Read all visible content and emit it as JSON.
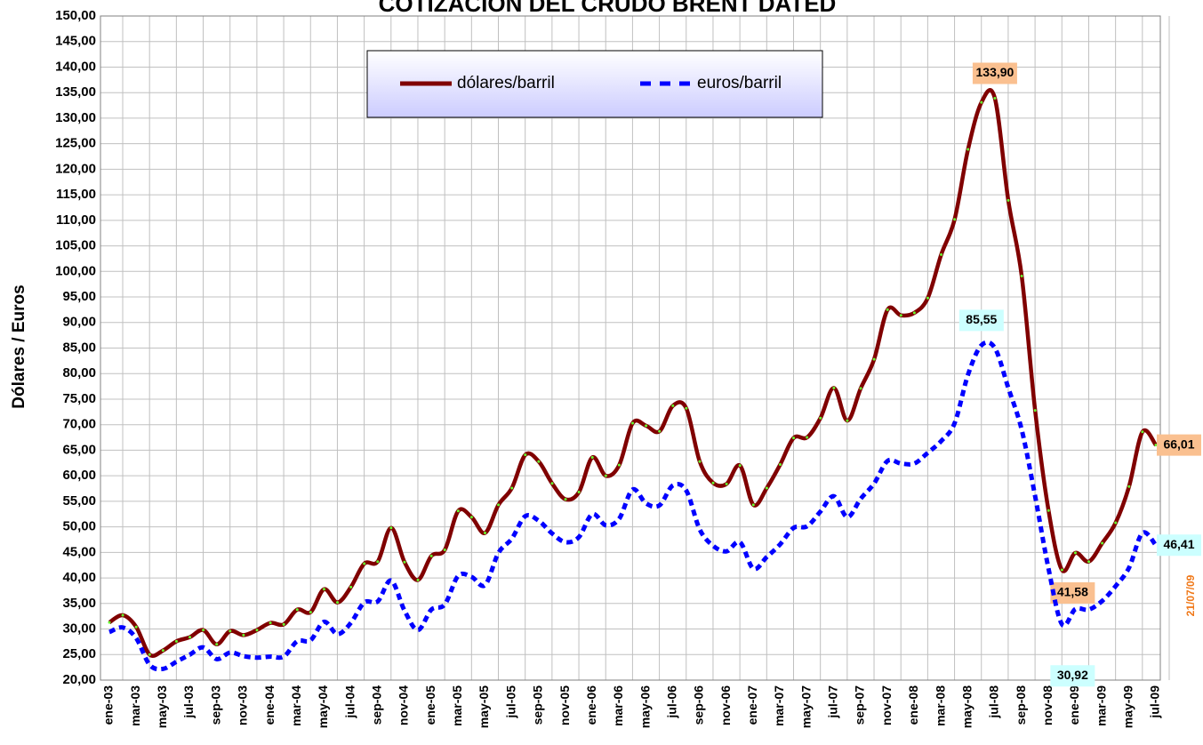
{
  "chart_data": {
    "type": "line",
    "title": "COTIZACIÓN DEL CRUDO BRENT DATED",
    "y_label": "Dólares / Euros",
    "annotation": "21/07/09",
    "categories": [
      "ene-03",
      null,
      "mar-03",
      null,
      "may-03",
      null,
      "jul-03",
      null,
      "sep-03",
      null,
      "nov-03",
      null,
      "ene-04",
      null,
      "mar-04",
      null,
      "may-04",
      null,
      "jul-04",
      null,
      "sep-04",
      null,
      "nov-04",
      null,
      "ene-05",
      null,
      "mar-05",
      null,
      "may-05",
      null,
      "jul-05",
      null,
      "sep-05",
      null,
      "nov-05",
      null,
      "ene-06",
      null,
      "mar-06",
      null,
      "may-06",
      null,
      "jul-06",
      null,
      "sep-06",
      null,
      "nov-06",
      null,
      "ene-07",
      null,
      "mar-07",
      null,
      "may-07",
      null,
      "jul-07",
      null,
      "sep-07",
      null,
      "nov-07",
      null,
      "ene-08",
      null,
      "mar-08",
      null,
      "may-08",
      null,
      "jul-08",
      null,
      "sep-08",
      null,
      "nov-08",
      null,
      "ene-09",
      null,
      "mar-09",
      null,
      "may-09",
      null,
      "jul-09"
    ],
    "series": [
      {
        "name": "dólares/barril",
        "color": "#800000",
        "label_fill": "#fac090",
        "values": [
          31.3,
          32.7,
          30.4,
          25.0,
          25.8,
          27.6,
          28.4,
          29.8,
          27.0,
          29.6,
          28.8,
          29.8,
          31.2,
          30.9,
          33.8,
          33.3,
          37.8,
          35.2,
          38.2,
          42.8,
          43.2,
          49.8,
          43.1,
          39.6,
          44.3,
          45.5,
          53.1,
          51.9,
          48.8,
          54.3,
          57.6,
          64.1,
          62.8,
          58.5,
          55.4,
          56.8,
          63.6,
          60.0,
          62.1,
          70.3,
          69.8,
          68.7,
          73.7,
          73.2,
          62.8,
          58.6,
          58.4,
          62.0,
          54.3,
          57.6,
          62.2,
          67.4,
          67.5,
          71.3,
          77.2,
          70.8,
          77.1,
          82.8,
          92.5,
          91.4,
          91.9,
          94.8,
          103.3,
          110.2,
          123.9,
          133.1,
          133.9,
          113.9,
          99.1,
          72.8,
          53.2,
          41.58,
          44.9,
          43.2,
          46.8,
          50.8,
          57.9,
          68.6,
          66.01
        ],
        "value_labels": [
          null,
          null,
          null,
          null,
          null,
          null,
          null,
          null,
          null,
          null,
          null,
          null,
          null,
          null,
          null,
          null,
          null,
          null,
          null,
          null,
          null,
          null,
          null,
          null,
          null,
          null,
          null,
          null,
          null,
          null,
          null,
          null,
          null,
          null,
          null,
          null,
          null,
          null,
          null,
          null,
          null,
          null,
          null,
          null,
          null,
          null,
          null,
          null,
          null,
          null,
          null,
          null,
          null,
          null,
          null,
          null,
          null,
          null,
          null,
          null,
          null,
          null,
          null,
          null,
          null,
          null,
          "133,90",
          null,
          null,
          null,
          null,
          "41,58",
          null,
          null,
          null,
          null,
          null,
          null,
          "66,01"
        ]
      },
      {
        "name": "euros/barril",
        "color": "#0000ff",
        "label_fill": "#ccffff",
        "dashed": true,
        "values": [
          29.4,
          30.3,
          28.2,
          23.0,
          22.2,
          23.6,
          25.0,
          26.4,
          24.1,
          25.4,
          24.7,
          24.4,
          24.6,
          24.6,
          27.6,
          27.8,
          31.4,
          29.0,
          31.2,
          35.2,
          35.4,
          39.5,
          33.6,
          29.8,
          33.8,
          34.8,
          40.4,
          40.2,
          38.6,
          44.9,
          47.7,
          52.1,
          51.2,
          48.7,
          47.0,
          48.0,
          52.5,
          50.3,
          51.6,
          57.3,
          54.6,
          54.2,
          58.1,
          57.1,
          49.5,
          46.3,
          45.2,
          47.0,
          41.8,
          44.1,
          46.6,
          49.8,
          50.1,
          53.0,
          56.0,
          51.9,
          55.5,
          58.5,
          62.9,
          62.4,
          62.4,
          64.5,
          66.8,
          70.3,
          79.8,
          85.55,
          85.0,
          77.2,
          69.0,
          56.0,
          41.8,
          30.92,
          33.9,
          33.8,
          35.5,
          38.4,
          42.0,
          48.8,
          46.41
        ],
        "value_labels": [
          null,
          null,
          null,
          null,
          null,
          null,
          null,
          null,
          null,
          null,
          null,
          null,
          null,
          null,
          null,
          null,
          null,
          null,
          null,
          null,
          null,
          null,
          null,
          null,
          null,
          null,
          null,
          null,
          null,
          null,
          null,
          null,
          null,
          null,
          null,
          null,
          null,
          null,
          null,
          null,
          null,
          null,
          null,
          null,
          null,
          null,
          null,
          null,
          null,
          null,
          null,
          null,
          null,
          null,
          null,
          null,
          null,
          null,
          null,
          null,
          null,
          null,
          null,
          null,
          null,
          "85,55",
          null,
          null,
          null,
          null,
          null,
          "30,92",
          null,
          null,
          null,
          null,
          null,
          null,
          "46,41"
        ]
      }
    ],
    "ylim": [
      20,
      150
    ],
    "yticks": [
      {
        "value": 20,
        "label": "20,00"
      },
      {
        "value": 25,
        "label": "25,00"
      },
      {
        "value": 30,
        "label": "30,00"
      },
      {
        "value": 35,
        "label": "35,00"
      },
      {
        "value": 40,
        "label": "40,00"
      },
      {
        "value": 45,
        "label": "45,00"
      },
      {
        "value": 50,
        "label": "50,00"
      },
      {
        "value": 55,
        "label": "55,00"
      },
      {
        "value": 60,
        "label": "60,00"
      },
      {
        "value": 65,
        "label": "65,00"
      },
      {
        "value": 70,
        "label": "70,00"
      },
      {
        "value": 75,
        "label": "75,00"
      },
      {
        "value": 80,
        "label": "80,00"
      },
      {
        "value": 85,
        "label": "85,00"
      },
      {
        "value": 90,
        "label": "90,00"
      },
      {
        "value": 95,
        "label": "95,00"
      },
      {
        "value": 100,
        "label": "100,00"
      },
      {
        "value": 105,
        "label": "105,00"
      },
      {
        "value": 110,
        "label": "110,00"
      },
      {
        "value": 115,
        "label": "115,00"
      },
      {
        "value": 120,
        "label": "120,00"
      },
      {
        "value": 125,
        "label": "125,00"
      },
      {
        "value": 130,
        "label": "130,00"
      },
      {
        "value": 135,
        "label": "135,00"
      },
      {
        "value": 140,
        "label": "140,00"
      },
      {
        "value": 145,
        "label": "145,00"
      },
      {
        "value": 150,
        "label": "150,00"
      }
    ],
    "grid": true
  }
}
